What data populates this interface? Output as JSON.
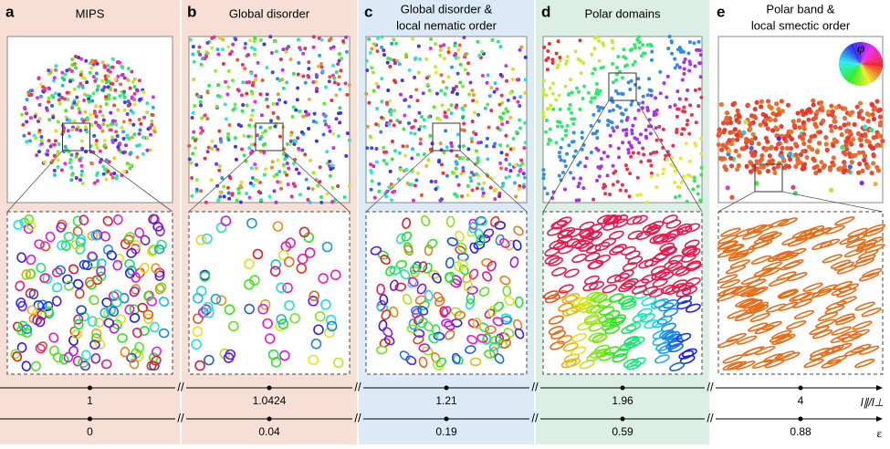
{
  "panels": [
    {
      "letter": "a",
      "title_lines": [
        "MIPS"
      ],
      "ratio": "1",
      "epsilon": "0"
    },
    {
      "letter": "b",
      "title_lines": [
        "Global disorder"
      ],
      "ratio": "1.0424",
      "epsilon": "0.04"
    },
    {
      "letter": "c",
      "title_lines": [
        "Global disorder &",
        "local nematic order"
      ],
      "ratio": "1.21",
      "epsilon": "0.19"
    },
    {
      "letter": "d",
      "title_lines": [
        "Polar domains"
      ],
      "ratio": "1.96",
      "epsilon": "0.59"
    },
    {
      "letter": "e",
      "title_lines": [
        "Polar band &",
        "local smectic order"
      ],
      "ratio": "4",
      "epsilon": "0.88"
    }
  ],
  "color_wheel_label": "φ",
  "axes": {
    "ratio_label": "l∥/l⊥",
    "epsilon_label": "ε"
  }
}
